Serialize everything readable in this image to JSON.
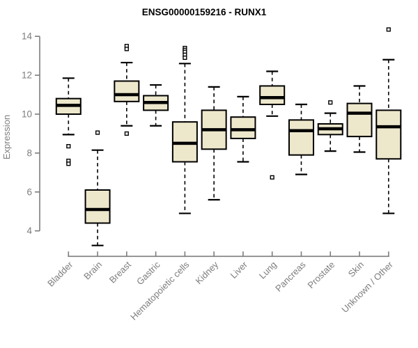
{
  "chart_data": {
    "type": "boxplot",
    "title": "ENSG00000159216 - RUNX1",
    "ylabel": "Expression",
    "xlabel": "",
    "ylim": [
      4,
      14
    ],
    "yticks": [
      4,
      6,
      8,
      10,
      12,
      14
    ],
    "grid": false,
    "legend": false,
    "categories": [
      "Bladder",
      "Brain",
      "Breast",
      "Gastric",
      "Hematopoietic cells",
      "Kidney",
      "Liver",
      "Lung",
      "Pancreas",
      "Prostate",
      "Skin",
      "Unknown / Other"
    ],
    "boxes": [
      {
        "label": "Bladder",
        "whisker_low": 8.95,
        "q1": 10.0,
        "median": 10.45,
        "q3": 10.8,
        "whisker_high": 11.85,
        "outliers": [
          8.35,
          7.6,
          7.45
        ]
      },
      {
        "label": "Brain",
        "whisker_low": 3.25,
        "q1": 4.4,
        "median": 5.1,
        "q3": 6.1,
        "whisker_high": 8.15,
        "outliers": [
          9.05
        ]
      },
      {
        "label": "Breast",
        "whisker_low": 9.4,
        "q1": 10.65,
        "median": 11.0,
        "q3": 11.7,
        "whisker_high": 12.65,
        "outliers": [
          13.5,
          13.35,
          9.0
        ]
      },
      {
        "label": "Gastric",
        "whisker_low": 9.4,
        "q1": 10.2,
        "median": 10.6,
        "q3": 10.95,
        "whisker_high": 11.5,
        "outliers": []
      },
      {
        "label": "Hematopoietic cells",
        "whisker_low": 4.9,
        "q1": 7.55,
        "median": 8.5,
        "q3": 9.6,
        "whisker_high": 12.6,
        "outliers": [
          13.4,
          13.3,
          13.2,
          13.05,
          12.9
        ]
      },
      {
        "label": "Kidney",
        "whisker_low": 5.6,
        "q1": 8.2,
        "median": 9.2,
        "q3": 10.2,
        "whisker_high": 11.4,
        "outliers": []
      },
      {
        "label": "Liver",
        "whisker_low": 7.55,
        "q1": 8.75,
        "median": 9.2,
        "q3": 9.85,
        "whisker_high": 10.9,
        "outliers": []
      },
      {
        "label": "Lung",
        "whisker_low": 9.9,
        "q1": 10.5,
        "median": 10.85,
        "q3": 11.45,
        "whisker_high": 12.2,
        "outliers": [
          6.75
        ]
      },
      {
        "label": "Pancreas",
        "whisker_low": 6.9,
        "q1": 7.9,
        "median": 9.15,
        "q3": 9.7,
        "whisker_high": 10.5,
        "outliers": []
      },
      {
        "label": "Prostate",
        "whisker_low": 8.1,
        "q1": 8.95,
        "median": 9.25,
        "q3": 9.5,
        "whisker_high": 10.05,
        "outliers": [
          10.6
        ]
      },
      {
        "label": "Skin",
        "whisker_low": 8.05,
        "q1": 8.85,
        "median": 10.05,
        "q3": 10.55,
        "whisker_high": 11.45,
        "outliers": []
      },
      {
        "label": "Unknown / Other",
        "whisker_low": 4.9,
        "q1": 7.7,
        "median": 9.35,
        "q3": 10.2,
        "whisker_high": 12.8,
        "outliers": [
          14.35
        ]
      }
    ],
    "colors": {
      "box_fill": "#EDE7CC",
      "box_border": "#000000",
      "median": "#000000",
      "whisker": "#000000",
      "outlier": "#000000",
      "axis": "#7D7D7D",
      "tick_labels": "#7D7D7D",
      "title": "#000000",
      "background": "#FFFFFF"
    }
  }
}
